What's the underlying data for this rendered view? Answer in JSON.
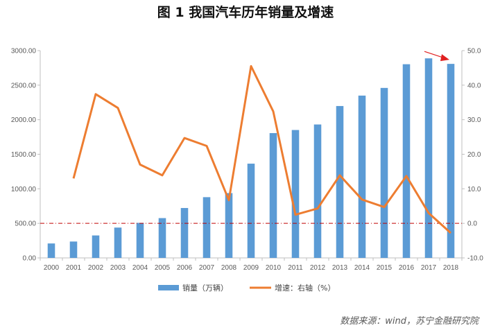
{
  "chart_data": {
    "type": "bar",
    "title": "图 1    我国汽车历年销量及增速",
    "categories": [
      "2000",
      "2001",
      "2002",
      "2003",
      "2004",
      "2005",
      "2006",
      "2007",
      "2008",
      "2009",
      "2010",
      "2011",
      "2012",
      "2013",
      "2014",
      "2015",
      "2016",
      "2017",
      "2018"
    ],
    "series": [
      {
        "name": "销量（万辆）",
        "type": "bar",
        "axis": "left",
        "color": "#5b9bd5",
        "values": [
          209,
          237,
          325,
          439,
          507,
          576,
          722,
          879,
          938,
          1364,
          1806,
          1851,
          1931,
          2198,
          2349,
          2460,
          2803,
          2888,
          2808
        ]
      },
      {
        "name": "增速：右轴（%）",
        "type": "line",
        "axis": "right",
        "color": "#ed7d31",
        "values": [
          null,
          13.0,
          37.4,
          33.4,
          17.0,
          13.9,
          24.7,
          22.4,
          6.7,
          45.5,
          32.4,
          2.5,
          4.3,
          13.9,
          6.9,
          4.7,
          13.7,
          3.0,
          -2.8
        ]
      }
    ],
    "left_axis": {
      "min": 0,
      "max": 3000,
      "step": 500,
      "tick_labels": [
        "0.00",
        "500.00",
        "1000.00",
        "1500.00",
        "2000.00",
        "2500.00",
        "3000.00"
      ]
    },
    "right_axis": {
      "min": -10,
      "max": 50,
      "step": 10,
      "tick_labels": [
        "-10.0",
        "0.0",
        "10.0",
        "20.0",
        "30.0",
        "40.0",
        "50.0"
      ]
    },
    "reference_line": {
      "axis": "right",
      "value": 0,
      "style": "dash-dot",
      "color": "#c00000"
    },
    "annotation": {
      "type": "arrow",
      "target_category": "2018",
      "color": "#e02020"
    },
    "grid": false,
    "legend_position": "bottom",
    "source_text": "数据来源：wind，苏宁金融研究院"
  }
}
